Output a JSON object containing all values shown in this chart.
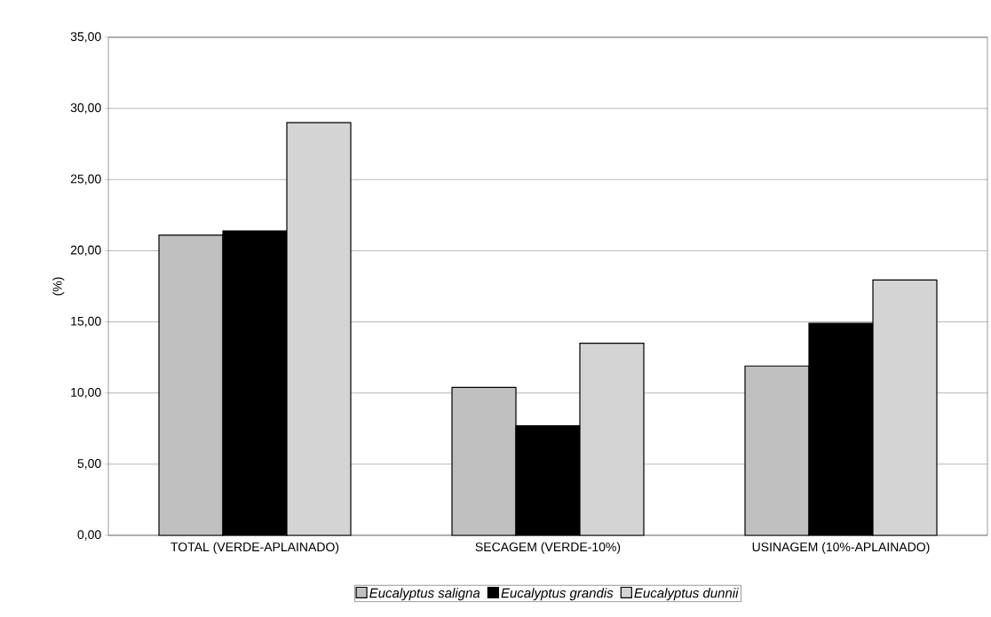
{
  "chart_data": {
    "type": "bar",
    "ylabel": "(%)",
    "categories": [
      "TOTAL (VERDE-APLAINADO)",
      "SECAGEM (VERDE-10%)",
      "USINAGEM (10%-APLAINADO)"
    ],
    "series": [
      {
        "name": "Eucalyptus saligna",
        "color": "#c0c0c0",
        "values": [
          21.1,
          10.4,
          11.9
        ]
      },
      {
        "name": "Eucalyptus grandis",
        "color": "#000000",
        "values": [
          21.4,
          7.7,
          14.9
        ]
      },
      {
        "name": "Eucalyptus dunnii",
        "color": "#d4d4d4",
        "values": [
          29.0,
          13.5,
          17.95
        ]
      }
    ],
    "ylim": [
      0,
      35
    ],
    "yticks": [
      {
        "value": 0,
        "label": "0,00"
      },
      {
        "value": 5,
        "label": "5,00"
      },
      {
        "value": 10,
        "label": "10,00"
      },
      {
        "value": 15,
        "label": "15,00"
      },
      {
        "value": 20,
        "label": "20,00"
      },
      {
        "value": 25,
        "label": "25,00"
      },
      {
        "value": 30,
        "label": "30,00"
      },
      {
        "value": 35,
        "label": "35,00"
      }
    ],
    "grid": "y",
    "legend": "bottom"
  }
}
